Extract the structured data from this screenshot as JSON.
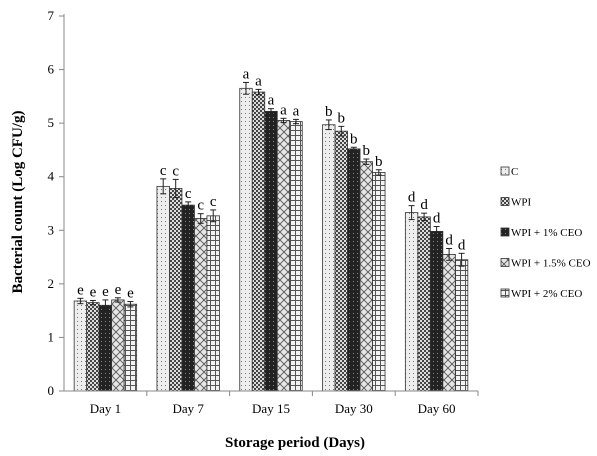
{
  "chart_data": {
    "type": "bar",
    "xlabel": "Storage period (Days)",
    "ylabel": "Bacterial count (Log CFU/g)",
    "ylim": [
      0,
      7
    ],
    "yticks": [
      0,
      1,
      2,
      3,
      4,
      5,
      6,
      7
    ],
    "grid": false,
    "legend_position": "right",
    "categories": [
      "Day 1",
      "Day 7",
      "Day 15",
      "Day 30",
      "Day 60"
    ],
    "series": [
      {
        "name": "C",
        "values": [
          1.68,
          3.82,
          5.65,
          4.97,
          3.33
        ],
        "errors": [
          0.05,
          0.14,
          0.11,
          0.09,
          0.13
        ],
        "labels": [
          "e",
          "c",
          "a",
          "b",
          "d"
        ],
        "pattern": "pat-dots"
      },
      {
        "name": "WPI",
        "values": [
          1.65,
          3.78,
          5.58,
          4.85,
          3.25
        ],
        "errors": [
          0.04,
          0.17,
          0.05,
          0.09,
          0.07
        ],
        "labels": [
          "e",
          "c",
          "a",
          "b",
          "d"
        ],
        "pattern": "pat-checker"
      },
      {
        "name": "WPI + 1% CEO",
        "values": [
          1.6,
          3.47,
          5.22,
          4.52,
          2.98
        ],
        "errors": [
          0.1,
          0.06,
          0.05,
          0.03,
          0.09
        ],
        "labels": [
          "e",
          "c",
          "a",
          "b",
          "d"
        ],
        "pattern": "pat-dark"
      },
      {
        "name": "WPI + 1.5% CEO",
        "values": [
          1.7,
          3.22,
          5.05,
          4.28,
          2.55
        ],
        "errors": [
          0.04,
          0.09,
          0.04,
          0.05,
          0.11
        ],
        "labels": [
          "e",
          "c",
          "a",
          "b",
          "d"
        ],
        "pattern": "pat-diamond"
      },
      {
        "name": "WPI + 2% CEO",
        "values": [
          1.62,
          3.27,
          5.03,
          4.08,
          2.45
        ],
        "errors": [
          0.05,
          0.11,
          0.04,
          0.05,
          0.12
        ],
        "labels": [
          "e",
          "c",
          "a",
          "b",
          "d"
        ],
        "pattern": "pat-grid"
      }
    ]
  }
}
